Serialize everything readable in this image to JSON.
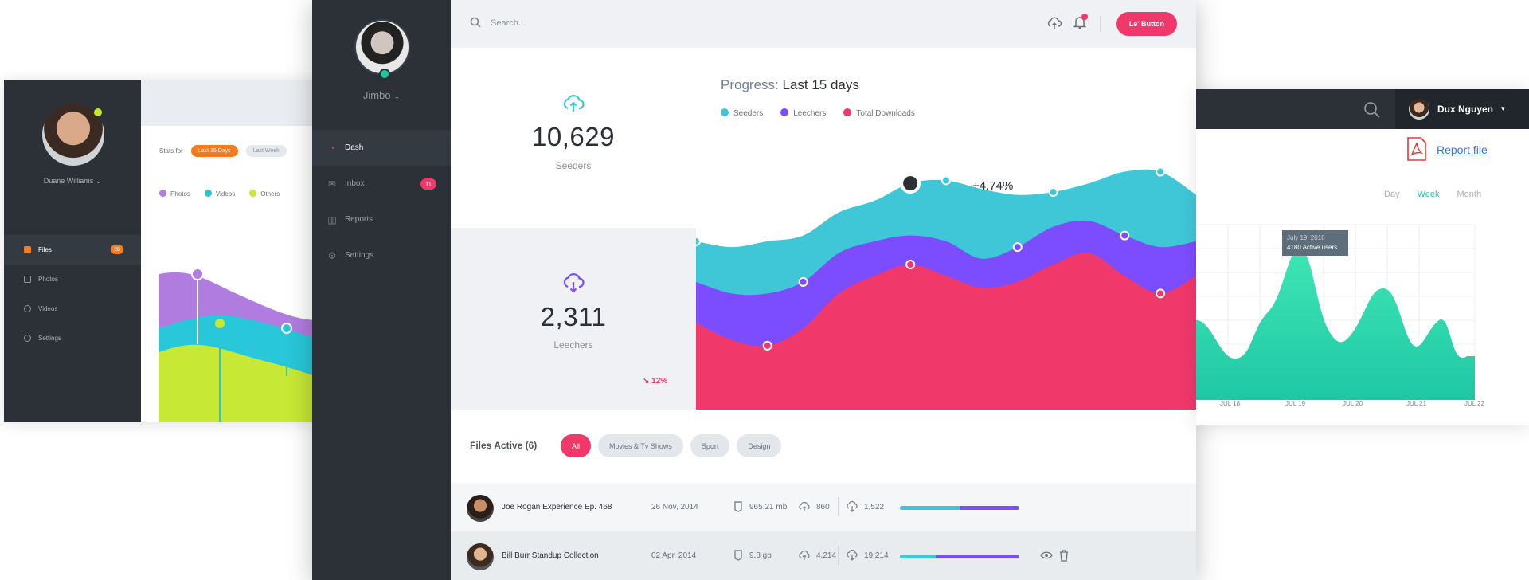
{
  "left_app": {
    "user_name": "Duane Williams",
    "nav": [
      {
        "label": "Files",
        "badge": "28"
      },
      {
        "label": "Photos"
      },
      {
        "label": "Videos"
      },
      {
        "label": "Settings"
      }
    ],
    "stats_label": "Stats for",
    "range_active": "Last 15 Days",
    "range_other": "Last Week",
    "legend": [
      {
        "label": "Photos",
        "color": "#b07ce0"
      },
      {
        "label": "Videos",
        "color": "#28c7d9"
      },
      {
        "label": "Others",
        "color": "#c7e834"
      }
    ]
  },
  "main_app": {
    "user_name": "Jimbo",
    "nav": [
      {
        "label": "Dash",
        "icon": "dashboard-icon"
      },
      {
        "label": "Inbox",
        "icon": "inbox-icon",
        "badge": "11"
      },
      {
        "label": "Reports",
        "icon": "reports-icon"
      },
      {
        "label": "Settings",
        "icon": "gear-icon"
      }
    ],
    "search_placeholder": "Search...",
    "cta_label": "Le' Button",
    "stats": [
      {
        "value": "10,629",
        "label": "Seeders",
        "icon": "upload-cloud-icon",
        "color": "#3fc7d8"
      },
      {
        "value": "2,311",
        "label": "Leechers",
        "icon": "download-cloud-icon",
        "color": "#7c4dff",
        "change": "12%"
      }
    ],
    "chart": {
      "title_label": "Progress:",
      "title_value": "Last 15 days",
      "annotation": "+4.74%"
    },
    "files": {
      "title": "Files Active (6)",
      "filters": [
        "All",
        "Movies & Tv Shows",
        "Sport",
        "Design"
      ],
      "rows": [
        {
          "name": "Joe Rogan Experience Ep. 468",
          "date": "26 Nov, 2014",
          "size": "965.21 mb",
          "seeders": "860",
          "leechers": "1,522",
          "progress": 0.5
        },
        {
          "name": "Bill Burr Standup Collection",
          "date": "02 Apr, 2014",
          "size": "9.8 gb",
          "seeders": "4,214",
          "leechers": "19,214",
          "progress": 0.3
        }
      ]
    }
  },
  "right_app": {
    "user_name": "Dux Nguyen",
    "report_label": "Report file",
    "ranges": [
      "Day",
      "Week",
      "Month"
    ],
    "tooltip": {
      "date": "July 19, 2016",
      "text": "4180 Active users"
    },
    "x_ticks": [
      "JUL 18",
      "JUL 19",
      "JUL 20",
      "JUL 21",
      "JUL 22"
    ]
  },
  "chart_data": {
    "type": "area",
    "title": "Progress: Last 15 days",
    "x": [
      0,
      1,
      2,
      3,
      4,
      5,
      6,
      7,
      8,
      9,
      10,
      11,
      12,
      13,
      14
    ],
    "series": [
      {
        "name": "Seeders",
        "color": "#3fc7d8",
        "values": [
          58,
          56,
          58,
          60,
          68,
          72,
          78,
          79,
          76,
          74,
          75,
          78,
          82,
          82,
          74
        ]
      },
      {
        "name": "Leechers",
        "color": "#7c4dff",
        "values": [
          44,
          40,
          40,
          44,
          54,
          58,
          60,
          58,
          52,
          56,
          63,
          65,
          60,
          56,
          58
        ]
      },
      {
        "name": "Total Downloads",
        "color": "#f0386b",
        "values": [
          30,
          24,
          22,
          28,
          40,
          46,
          50,
          46,
          42,
          44,
          50,
          54,
          46,
          40,
          46
        ]
      }
    ],
    "ylim": [
      0,
      100
    ],
    "grid": false,
    "legend": "top-left"
  }
}
